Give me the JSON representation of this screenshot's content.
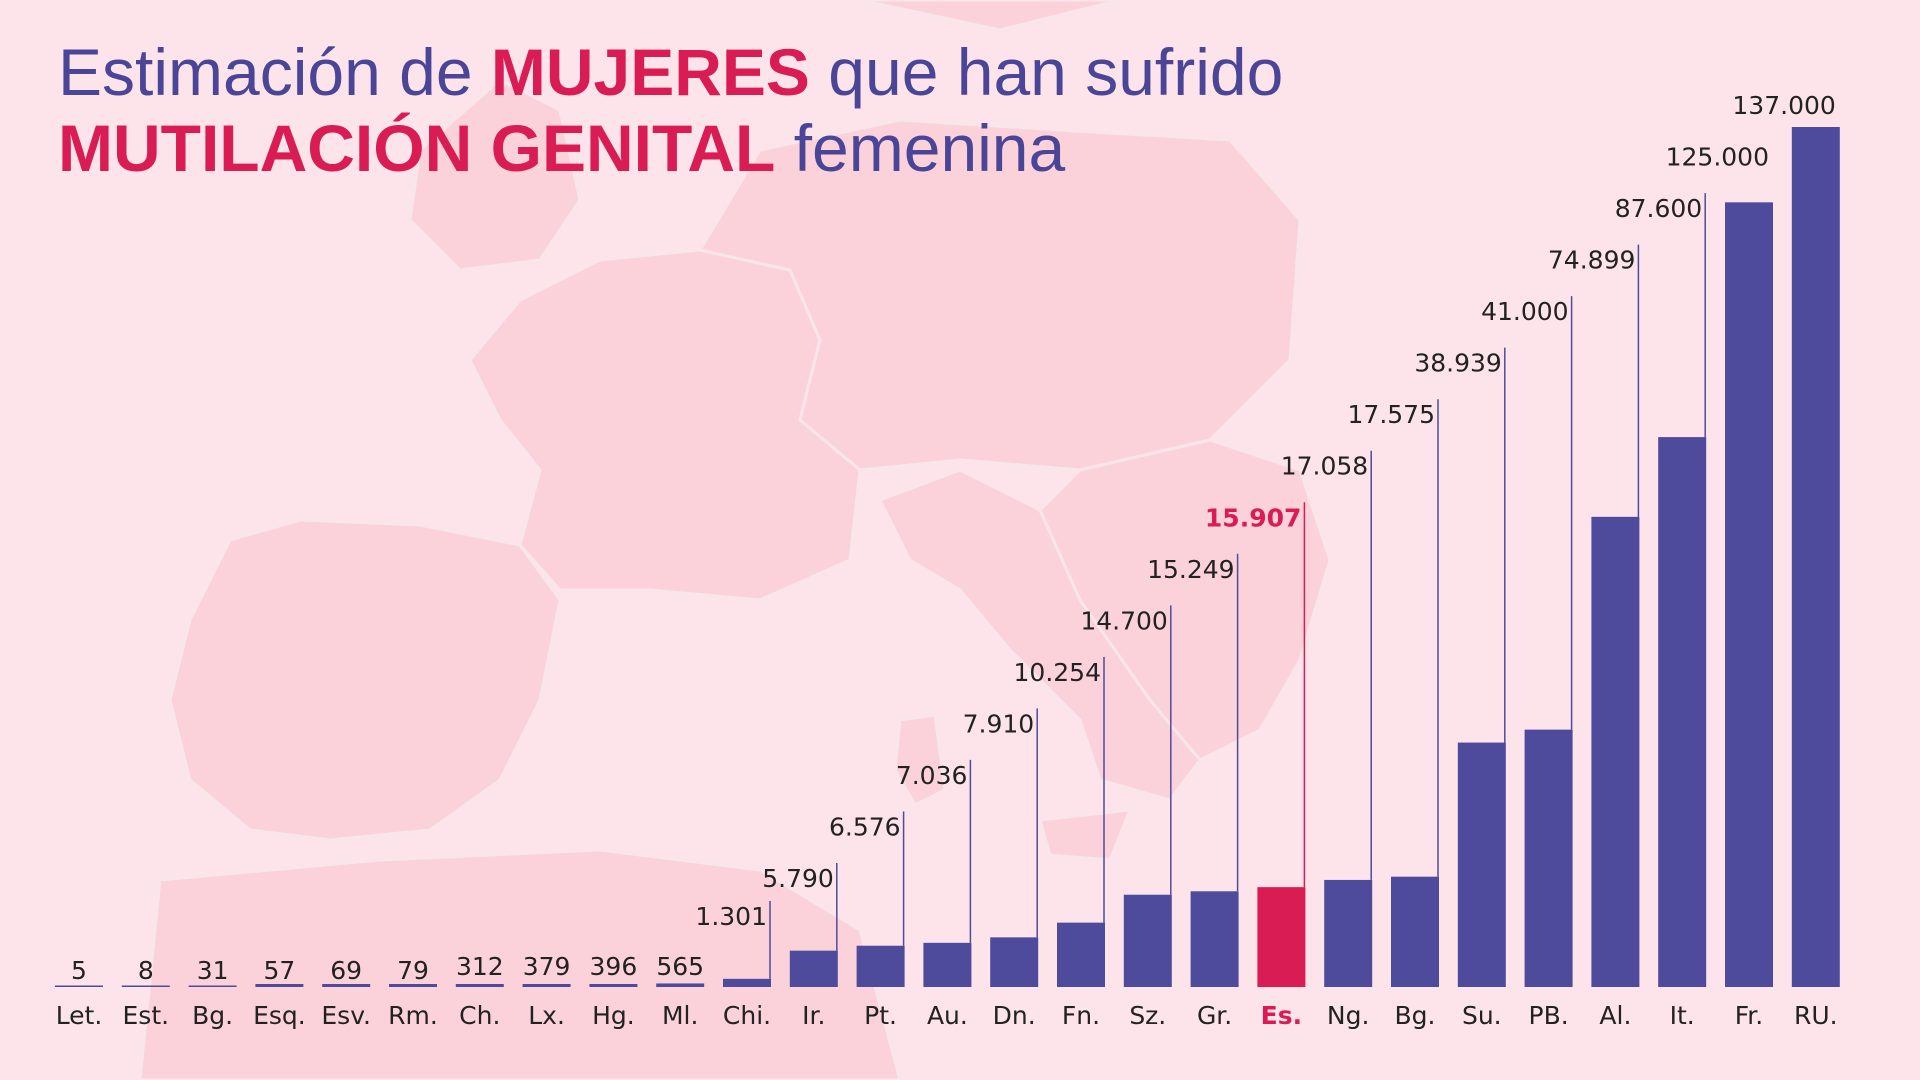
{
  "title": {
    "line1_pre": "Estimación de ",
    "line1_em": "MUJERES",
    "line1_post": " que han sufrido",
    "line2_em": "MUTILACIÓN GENITAL",
    "line2_post": " femenina"
  },
  "colors": {
    "background": "#fde4ea",
    "map": "#fbd2da",
    "bar": "#4f4b9c",
    "highlight": "#d91c53",
    "title": "#4b4598",
    "text": "#222222"
  },
  "chart_data": {
    "type": "bar",
    "categories": [
      "Let.",
      "Est.",
      "Bg.",
      "Esq.",
      "Esv.",
      "Rm.",
      "Ch.",
      "Lx.",
      "Hg.",
      "Ml.",
      "Chi.",
      "Ir.",
      "Pt.",
      "Au.",
      "Dn.",
      "Fn.",
      "Sz.",
      "Gr.",
      "Es.",
      "Ng.",
      "Bg.",
      "Su.",
      "PB.",
      "Al.",
      "It.",
      "Fr.",
      "RU."
    ],
    "values": [
      5,
      8,
      31,
      57,
      69,
      79,
      312,
      379,
      396,
      565,
      1301,
      5790,
      6576,
      7036,
      7910,
      10254,
      14700,
      15249,
      15907,
      17058,
      17575,
      38939,
      41000,
      74899,
      87600,
      125000,
      137000
    ],
    "value_labels": [
      "5",
      "8",
      "31",
      "57",
      "69",
      "79",
      "312",
      "379",
      "396",
      "565",
      "1.301",
      "5.790",
      "6.576",
      "7.036",
      "7.910",
      "10.254",
      "14.700",
      "15.249",
      "15.907",
      "17.058",
      "17.575",
      "38.939",
      "41.000",
      "74.899",
      "87.600",
      "125.000",
      "137.000"
    ],
    "highlight_index": 18,
    "ylim": [
      0,
      137000
    ],
    "grid": false,
    "xlabel": "",
    "ylabel": ""
  }
}
